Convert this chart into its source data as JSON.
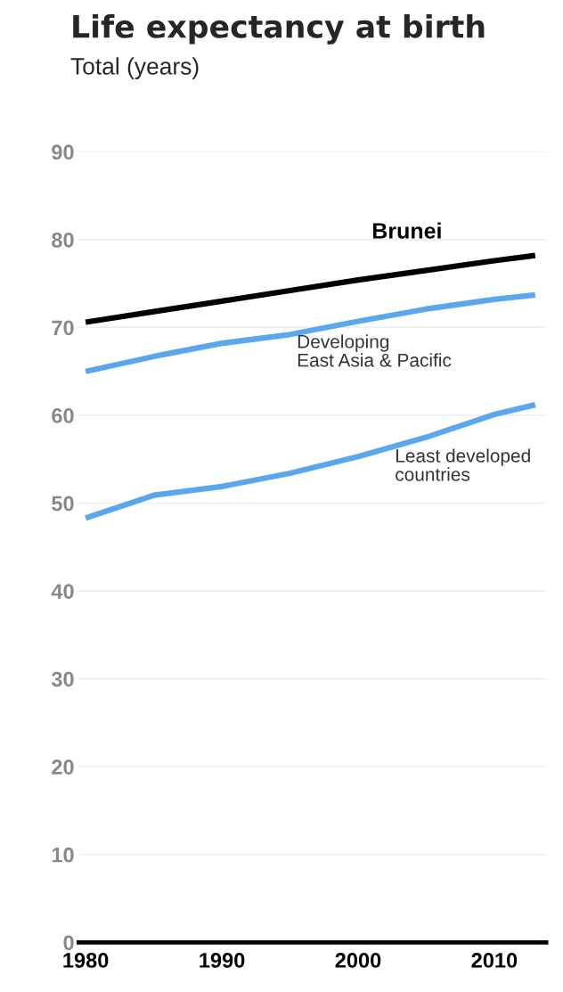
{
  "chart_data": {
    "type": "line",
    "title": "Life expectancy at birth",
    "subtitle": "Total (years)",
    "x": [
      1980,
      1985,
      1990,
      1995,
      2000,
      2005,
      2010,
      2013
    ],
    "series": [
      {
        "name": "Brunei",
        "color": "#000000",
        "values": [
          70.6,
          71.8,
          73.0,
          74.2,
          75.4,
          76.5,
          77.6,
          78.2
        ]
      },
      {
        "name": "Developing\nEast Asia & Pacific",
        "color": "#5aa7ee",
        "values": [
          65.0,
          66.7,
          68.2,
          69.2,
          70.7,
          72.1,
          73.2,
          73.7
        ]
      },
      {
        "name": "Least developed\ncountries",
        "color": "#5aa7ee",
        "values": [
          48.3,
          50.9,
          51.9,
          53.4,
          55.3,
          57.5,
          60.1,
          61.2
        ]
      }
    ],
    "xlim": [
      1979.5,
      2013.8
    ],
    "xticks": [
      1980,
      1990,
      2000,
      2010
    ],
    "ylim": [
      0,
      90
    ],
    "yticks": [
      0,
      10,
      20,
      30,
      40,
      50,
      60,
      70,
      80,
      90
    ],
    "grid": "y",
    "legend": false,
    "marker": "none",
    "line_style": "solid"
  }
}
